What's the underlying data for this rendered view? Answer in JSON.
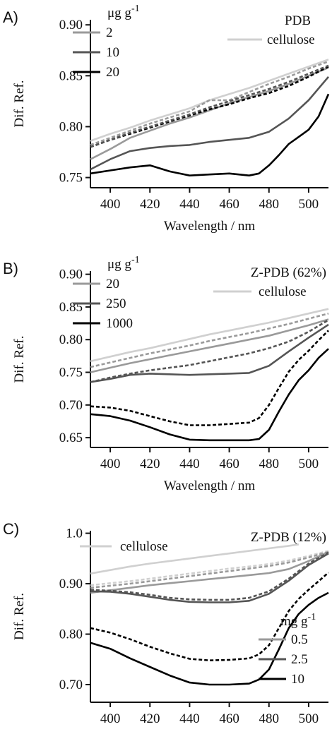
{
  "chart_data": [
    {
      "type": "line",
      "panel": "A)",
      "xlabel": "Wavelength / nm",
      "ylabel": "Dif. Ref.",
      "xlim": [
        390,
        510
      ],
      "ylim": [
        0.74,
        0.905
      ],
      "xticks": [
        400,
        420,
        440,
        460,
        480,
        500
      ],
      "yticks": [
        0.75,
        0.8,
        0.85,
        0.9
      ],
      "ytick_labels": [
        "0.75",
        "0.80",
        "0.85",
        "0.90"
      ],
      "legend_title": "μg g",
      "legend_title_sup": "-1",
      "annotation": "PDB",
      "legend_entries": [
        {
          "label": "2",
          "color": "#9a9a9a"
        },
        {
          "label": "10",
          "color": "#555555"
        },
        {
          "label": "20",
          "color": "#000000"
        },
        {
          "label": "cellulose",
          "color": "#d0d0d0"
        }
      ],
      "series": [
        {
          "name": "cellulose",
          "color": "#d0d0d0",
          "dash": "solid",
          "x": [
            390,
            400,
            410,
            420,
            430,
            440,
            450,
            460,
            470,
            480,
            490,
            500,
            510
          ],
          "y": [
            0.786,
            0.793,
            0.799,
            0.806,
            0.812,
            0.818,
            0.826,
            0.832,
            0.838,
            0.845,
            0.852,
            0.859,
            0.866
          ]
        },
        {
          "name": "",
          "color": "#9a9a9a",
          "dash": "dash",
          "x": [
            390,
            400,
            410,
            420,
            430,
            440,
            450,
            460,
            470,
            480,
            490,
            500,
            510
          ],
          "y": [
            0.782,
            0.789,
            0.796,
            0.803,
            0.809,
            0.815,
            0.826,
            0.826,
            0.834,
            0.842,
            0.849,
            0.857,
            0.864
          ]
        },
        {
          "name": "2",
          "color": "#9a9a9a",
          "dash": "solid",
          "x": [
            390,
            400,
            410,
            420,
            430,
            440,
            450,
            460,
            470,
            480,
            490,
            500,
            510
          ],
          "y": [
            0.768,
            0.778,
            0.789,
            0.796,
            0.803,
            0.809,
            0.816,
            0.823,
            0.829,
            0.835,
            0.842,
            0.85,
            0.858
          ]
        },
        {
          "name": "",
          "color": "#000000",
          "dash": "dash",
          "x": [
            390,
            400,
            410,
            420,
            430,
            440,
            450,
            460,
            470,
            480,
            490,
            500,
            510
          ],
          "y": [
            0.78,
            0.787,
            0.793,
            0.799,
            0.805,
            0.811,
            0.817,
            0.822,
            0.828,
            0.833,
            0.84,
            0.849,
            0.859
          ]
        },
        {
          "name": "",
          "color": "#555555",
          "dash": "dash",
          "x": [
            390,
            400,
            410,
            420,
            430,
            440,
            450,
            460,
            470,
            480,
            490,
            500,
            510
          ],
          "y": [
            0.78,
            0.787,
            0.794,
            0.8,
            0.806,
            0.812,
            0.819,
            0.825,
            0.831,
            0.837,
            0.844,
            0.852,
            0.86
          ]
        },
        {
          "name": "10",
          "color": "#555555",
          "dash": "solid",
          "x": [
            390,
            400,
            410,
            420,
            430,
            440,
            450,
            460,
            470,
            480,
            490,
            500,
            510
          ],
          "y": [
            0.758,
            0.768,
            0.776,
            0.779,
            0.781,
            0.782,
            0.785,
            0.787,
            0.789,
            0.795,
            0.808,
            0.826,
            0.849
          ]
        },
        {
          "name": "20",
          "color": "#000000",
          "dash": "solid",
          "x": [
            390,
            400,
            410,
            420,
            430,
            440,
            450,
            460,
            470,
            475,
            480,
            485,
            490,
            495,
            500,
            505,
            510
          ],
          "y": [
            0.754,
            0.757,
            0.76,
            0.762,
            0.756,
            0.752,
            0.753,
            0.754,
            0.752,
            0.754,
            0.762,
            0.772,
            0.783,
            0.79,
            0.797,
            0.81,
            0.832
          ]
        }
      ]
    },
    {
      "type": "line",
      "panel": "B)",
      "xlabel": "Wavelength / nm",
      "ylabel": "Dif. Ref.",
      "xlim": [
        390,
        510
      ],
      "ylim": [
        0.635,
        0.905
      ],
      "xticks": [
        400,
        420,
        440,
        460,
        480,
        500
      ],
      "yticks": [
        0.65,
        0.7,
        0.75,
        0.8,
        0.85,
        0.9
      ],
      "ytick_labels": [
        "0.65",
        "0.70",
        "0.75",
        "0.80",
        "0.85",
        "0.90"
      ],
      "legend_title": "μg g",
      "legend_title_sup": "-1",
      "annotation": "Z-PDB (62%)",
      "legend_entries": [
        {
          "label": "20",
          "color": "#9a9a9a"
        },
        {
          "label": "250",
          "color": "#555555"
        },
        {
          "label": "1000",
          "color": "#000000"
        },
        {
          "label": "cellulose",
          "color": "#d0d0d0"
        }
      ],
      "series": [
        {
          "name": "cellulose",
          "color": "#d0d0d0",
          "dash": "solid",
          "x": [
            390,
            400,
            410,
            420,
            430,
            440,
            450,
            460,
            470,
            480,
            490,
            500,
            510
          ],
          "y": [
            0.767,
            0.774,
            0.781,
            0.787,
            0.794,
            0.801,
            0.808,
            0.814,
            0.82,
            0.826,
            0.833,
            0.84,
            0.847
          ]
        },
        {
          "name": "",
          "color": "#9a9a9a",
          "dash": "dash",
          "x": [
            390,
            400,
            410,
            420,
            430,
            440,
            450,
            460,
            470,
            480,
            490,
            500,
            510
          ],
          "y": [
            0.758,
            0.765,
            0.772,
            0.779,
            0.785,
            0.791,
            0.798,
            0.804,
            0.81,
            0.817,
            0.824,
            0.832,
            0.84
          ]
        },
        {
          "name": "20",
          "color": "#9a9a9a",
          "dash": "solid",
          "x": [
            390,
            400,
            410,
            420,
            430,
            440,
            450,
            460,
            470,
            480,
            490,
            500,
            510
          ],
          "y": [
            0.75,
            0.757,
            0.764,
            0.77,
            0.776,
            0.782,
            0.788,
            0.794,
            0.8,
            0.806,
            0.814,
            0.822,
            0.831
          ]
        },
        {
          "name": "",
          "color": "#555555",
          "dash": "dash",
          "x": [
            390,
            400,
            410,
            420,
            430,
            440,
            450,
            460,
            470,
            480,
            490,
            500,
            510
          ],
          "y": [
            0.735,
            0.742,
            0.748,
            0.753,
            0.757,
            0.761,
            0.767,
            0.773,
            0.779,
            0.787,
            0.797,
            0.812,
            0.83
          ]
        },
        {
          "name": "250",
          "color": "#555555",
          "dash": "solid",
          "x": [
            390,
            400,
            410,
            420,
            430,
            440,
            450,
            460,
            470,
            480,
            490,
            500,
            510
          ],
          "y": [
            0.735,
            0.74,
            0.746,
            0.748,
            0.747,
            0.746,
            0.747,
            0.748,
            0.749,
            0.76,
            0.782,
            0.803,
            0.823
          ]
        },
        {
          "name": "",
          "color": "#000000",
          "dash": "dash",
          "x": [
            390,
            400,
            410,
            420,
            430,
            440,
            450,
            460,
            470,
            475,
            480,
            485,
            490,
            495,
            500,
            505,
            510
          ],
          "y": [
            0.698,
            0.696,
            0.691,
            0.683,
            0.675,
            0.669,
            0.669,
            0.671,
            0.673,
            0.68,
            0.7,
            0.726,
            0.751,
            0.769,
            0.783,
            0.799,
            0.814
          ]
        },
        {
          "name": "1000",
          "color": "#000000",
          "dash": "solid",
          "x": [
            390,
            400,
            410,
            420,
            430,
            440,
            450,
            460,
            470,
            475,
            480,
            485,
            490,
            495,
            500,
            505,
            510
          ],
          "y": [
            0.686,
            0.683,
            0.676,
            0.666,
            0.655,
            0.647,
            0.646,
            0.646,
            0.646,
            0.648,
            0.662,
            0.69,
            0.716,
            0.738,
            0.753,
            0.772,
            0.786
          ]
        }
      ]
    },
    {
      "type": "line",
      "panel": "C)",
      "xlabel": "Wavelength / nm",
      "ylabel": "Dif. Ref.",
      "xlim": [
        390,
        510
      ],
      "ylim": [
        0.665,
        1.005
      ],
      "xticks": [
        400,
        420,
        440,
        460,
        480,
        500
      ],
      "yticks": [
        0.7,
        0.8,
        0.9,
        1.0
      ],
      "ytick_labels": [
        "0.70",
        "0.80",
        "0.90",
        "1.0"
      ],
      "legend_title": "mg g",
      "legend_title_sup": "-1",
      "annotation": "Z-PDB (12%)",
      "legend_entries": [
        {
          "label": "cellulose",
          "color": "#d0d0d0"
        },
        {
          "label": "0.5",
          "color": "#9a9a9a"
        },
        {
          "label": "2.5",
          "color": "#555555"
        },
        {
          "label": "10",
          "color": "#000000"
        }
      ],
      "series": [
        {
          "name": "cellulose",
          "color": "#d0d0d0",
          "dash": "solid",
          "x": [
            390,
            400,
            410,
            420,
            430,
            440,
            450,
            460,
            470,
            480,
            490,
            495
          ],
          "y": [
            0.92,
            0.927,
            0.934,
            0.94,
            0.945,
            0.95,
            0.955,
            0.96,
            0.965,
            0.97,
            0.975,
            0.978
          ]
        },
        {
          "name": "",
          "color": "#d0d0d0",
          "dash": "dash",
          "x": [
            390,
            400,
            410,
            420,
            430,
            440,
            450,
            460,
            470,
            480,
            490,
            500,
            510
          ],
          "y": [
            0.897,
            0.901,
            0.905,
            0.91,
            0.915,
            0.92,
            0.925,
            0.93,
            0.934,
            0.939,
            0.946,
            0.955,
            0.965
          ]
        },
        {
          "name": "",
          "color": "#9a9a9a",
          "dash": "dash",
          "x": [
            390,
            400,
            410,
            420,
            430,
            440,
            450,
            460,
            470,
            480,
            490,
            500,
            510
          ],
          "y": [
            0.892,
            0.896,
            0.9,
            0.905,
            0.91,
            0.915,
            0.92,
            0.925,
            0.93,
            0.935,
            0.942,
            0.952,
            0.963
          ]
        },
        {
          "name": "0.5",
          "color": "#9a9a9a",
          "dash": "solid",
          "x": [
            390,
            400,
            410,
            420,
            430,
            440,
            450,
            460,
            470,
            480,
            490,
            500,
            510
          ],
          "y": [
            0.882,
            0.887,
            0.892,
            0.897,
            0.901,
            0.905,
            0.909,
            0.913,
            0.917,
            0.921,
            0.929,
            0.945,
            0.963
          ]
        },
        {
          "name": "",
          "color": "#555555",
          "dash": "dash",
          "x": [
            390,
            400,
            410,
            420,
            430,
            440,
            450,
            460,
            470,
            480,
            490,
            500,
            510
          ],
          "y": [
            0.888,
            0.886,
            0.883,
            0.878,
            0.872,
            0.869,
            0.868,
            0.868,
            0.872,
            0.885,
            0.91,
            0.94,
            0.962
          ]
        },
        {
          "name": "2.5",
          "color": "#555555",
          "dash": "solid",
          "x": [
            390,
            400,
            410,
            420,
            430,
            440,
            450,
            460,
            470,
            480,
            490,
            500,
            510
          ],
          "y": [
            0.885,
            0.884,
            0.88,
            0.874,
            0.868,
            0.864,
            0.863,
            0.863,
            0.866,
            0.88,
            0.906,
            0.937,
            0.96
          ]
        },
        {
          "name": "",
          "color": "#000000",
          "dash": "dash",
          "x": [
            390,
            400,
            410,
            420,
            430,
            440,
            450,
            460,
            470,
            475,
            480,
            485,
            490,
            495,
            500,
            505,
            510
          ],
          "y": [
            0.812,
            0.803,
            0.79,
            0.775,
            0.762,
            0.751,
            0.748,
            0.749,
            0.752,
            0.76,
            0.778,
            0.812,
            0.846,
            0.87,
            0.888,
            0.905,
            0.922
          ]
        },
        {
          "name": "10",
          "color": "#000000",
          "dash": "solid",
          "x": [
            390,
            400,
            410,
            420,
            430,
            440,
            450,
            460,
            470,
            475,
            480,
            485,
            490,
            495,
            500,
            505,
            510
          ],
          "y": [
            0.783,
            0.771,
            0.752,
            0.735,
            0.718,
            0.704,
            0.7,
            0.7,
            0.702,
            0.71,
            0.73,
            0.77,
            0.812,
            0.84,
            0.858,
            0.872,
            0.882
          ]
        }
      ]
    }
  ]
}
